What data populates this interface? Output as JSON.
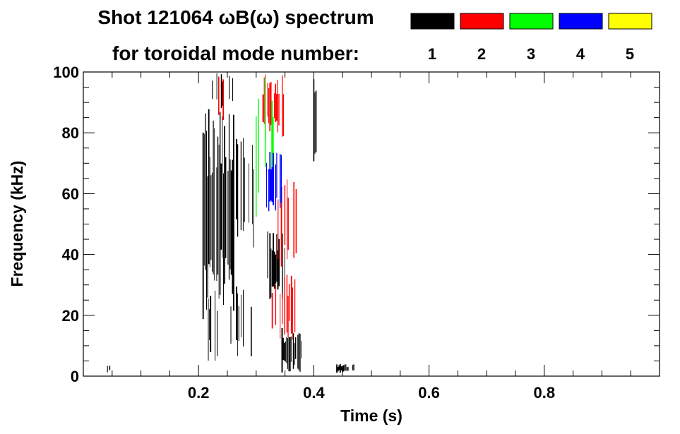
{
  "chart_data": {
    "type": "heatmap",
    "title_line1": "Shot 121064 ωB(ω) spectrum",
    "title_line2": "for toroidal mode number:",
    "xlabel": "Time (s)",
    "ylabel": "Frequency (kHz)",
    "xlim": [
      0.0,
      1.0
    ],
    "ylim": [
      0,
      100
    ],
    "x_ticks": [
      0.2,
      0.4,
      0.6,
      0.8
    ],
    "x_tick_labels": [
      "0.2",
      "0.4",
      "0.6",
      "0.8"
    ],
    "y_ticks": [
      0,
      20,
      40,
      60,
      80,
      100
    ],
    "y_tick_labels": [
      "0",
      "20",
      "40",
      "60",
      "80",
      "100"
    ],
    "grid": false,
    "legend": [
      {
        "label": "1",
        "color": "#000000"
      },
      {
        "label": "2",
        "color": "#ff0000"
      },
      {
        "label": "3",
        "color": "#00ff00"
      },
      {
        "label": "4",
        "color": "#0000ff"
      },
      {
        "label": "5",
        "color": "#ffff00"
      }
    ],
    "regions": [
      {
        "mode": "1",
        "t": [
          0.208,
          0.262
        ],
        "f": [
          18,
          88
        ],
        "density": 0.9
      },
      {
        "mode": "1",
        "t": [
          0.262,
          0.3
        ],
        "f": [
          38,
          82
        ],
        "density": 0.6
      },
      {
        "mode": "1",
        "t": [
          0.215,
          0.3
        ],
        "f": [
          5,
          30
        ],
        "density": 0.25
      },
      {
        "mode": "1",
        "t": [
          0.22,
          0.26
        ],
        "f": [
          88,
          100
        ],
        "density": 0.25
      },
      {
        "mode": "1",
        "t": [
          0.318,
          0.352
        ],
        "f": [
          24,
          48
        ],
        "density": 0.8
      },
      {
        "mode": "1",
        "t": [
          0.345,
          0.38
        ],
        "f": [
          1,
          16
        ],
        "density": 0.9
      },
      {
        "mode": "1",
        "t": [
          0.398,
          0.404
        ],
        "f": [
          70,
          100
        ],
        "density": 0.8
      },
      {
        "mode": "1",
        "t": [
          0.44,
          0.47
        ],
        "f": [
          1,
          4
        ],
        "density": 0.8
      },
      {
        "mode": "1",
        "t": [
          0.04,
          0.05
        ],
        "f": [
          1,
          4
        ],
        "density": 0.5
      },
      {
        "mode": "2",
        "t": [
          0.312,
          0.348
        ],
        "f": [
          78,
          100
        ],
        "density": 0.5
      },
      {
        "mode": "2",
        "t": [
          0.328,
          0.368
        ],
        "f": [
          12,
          34
        ],
        "density": 0.5
      },
      {
        "mode": "2",
        "t": [
          0.338,
          0.372
        ],
        "f": [
          36,
          70
        ],
        "density": 0.3
      },
      {
        "mode": "2",
        "t": [
          0.235,
          0.255
        ],
        "f": [
          82,
          100
        ],
        "density": 0.2
      },
      {
        "mode": "3",
        "t": [
          0.3,
          0.345
        ],
        "f": [
          52,
          100
        ],
        "density": 0.15
      },
      {
        "mode": "4",
        "t": [
          0.318,
          0.345
        ],
        "f": [
          52,
          76
        ],
        "density": 0.55
      }
    ]
  }
}
